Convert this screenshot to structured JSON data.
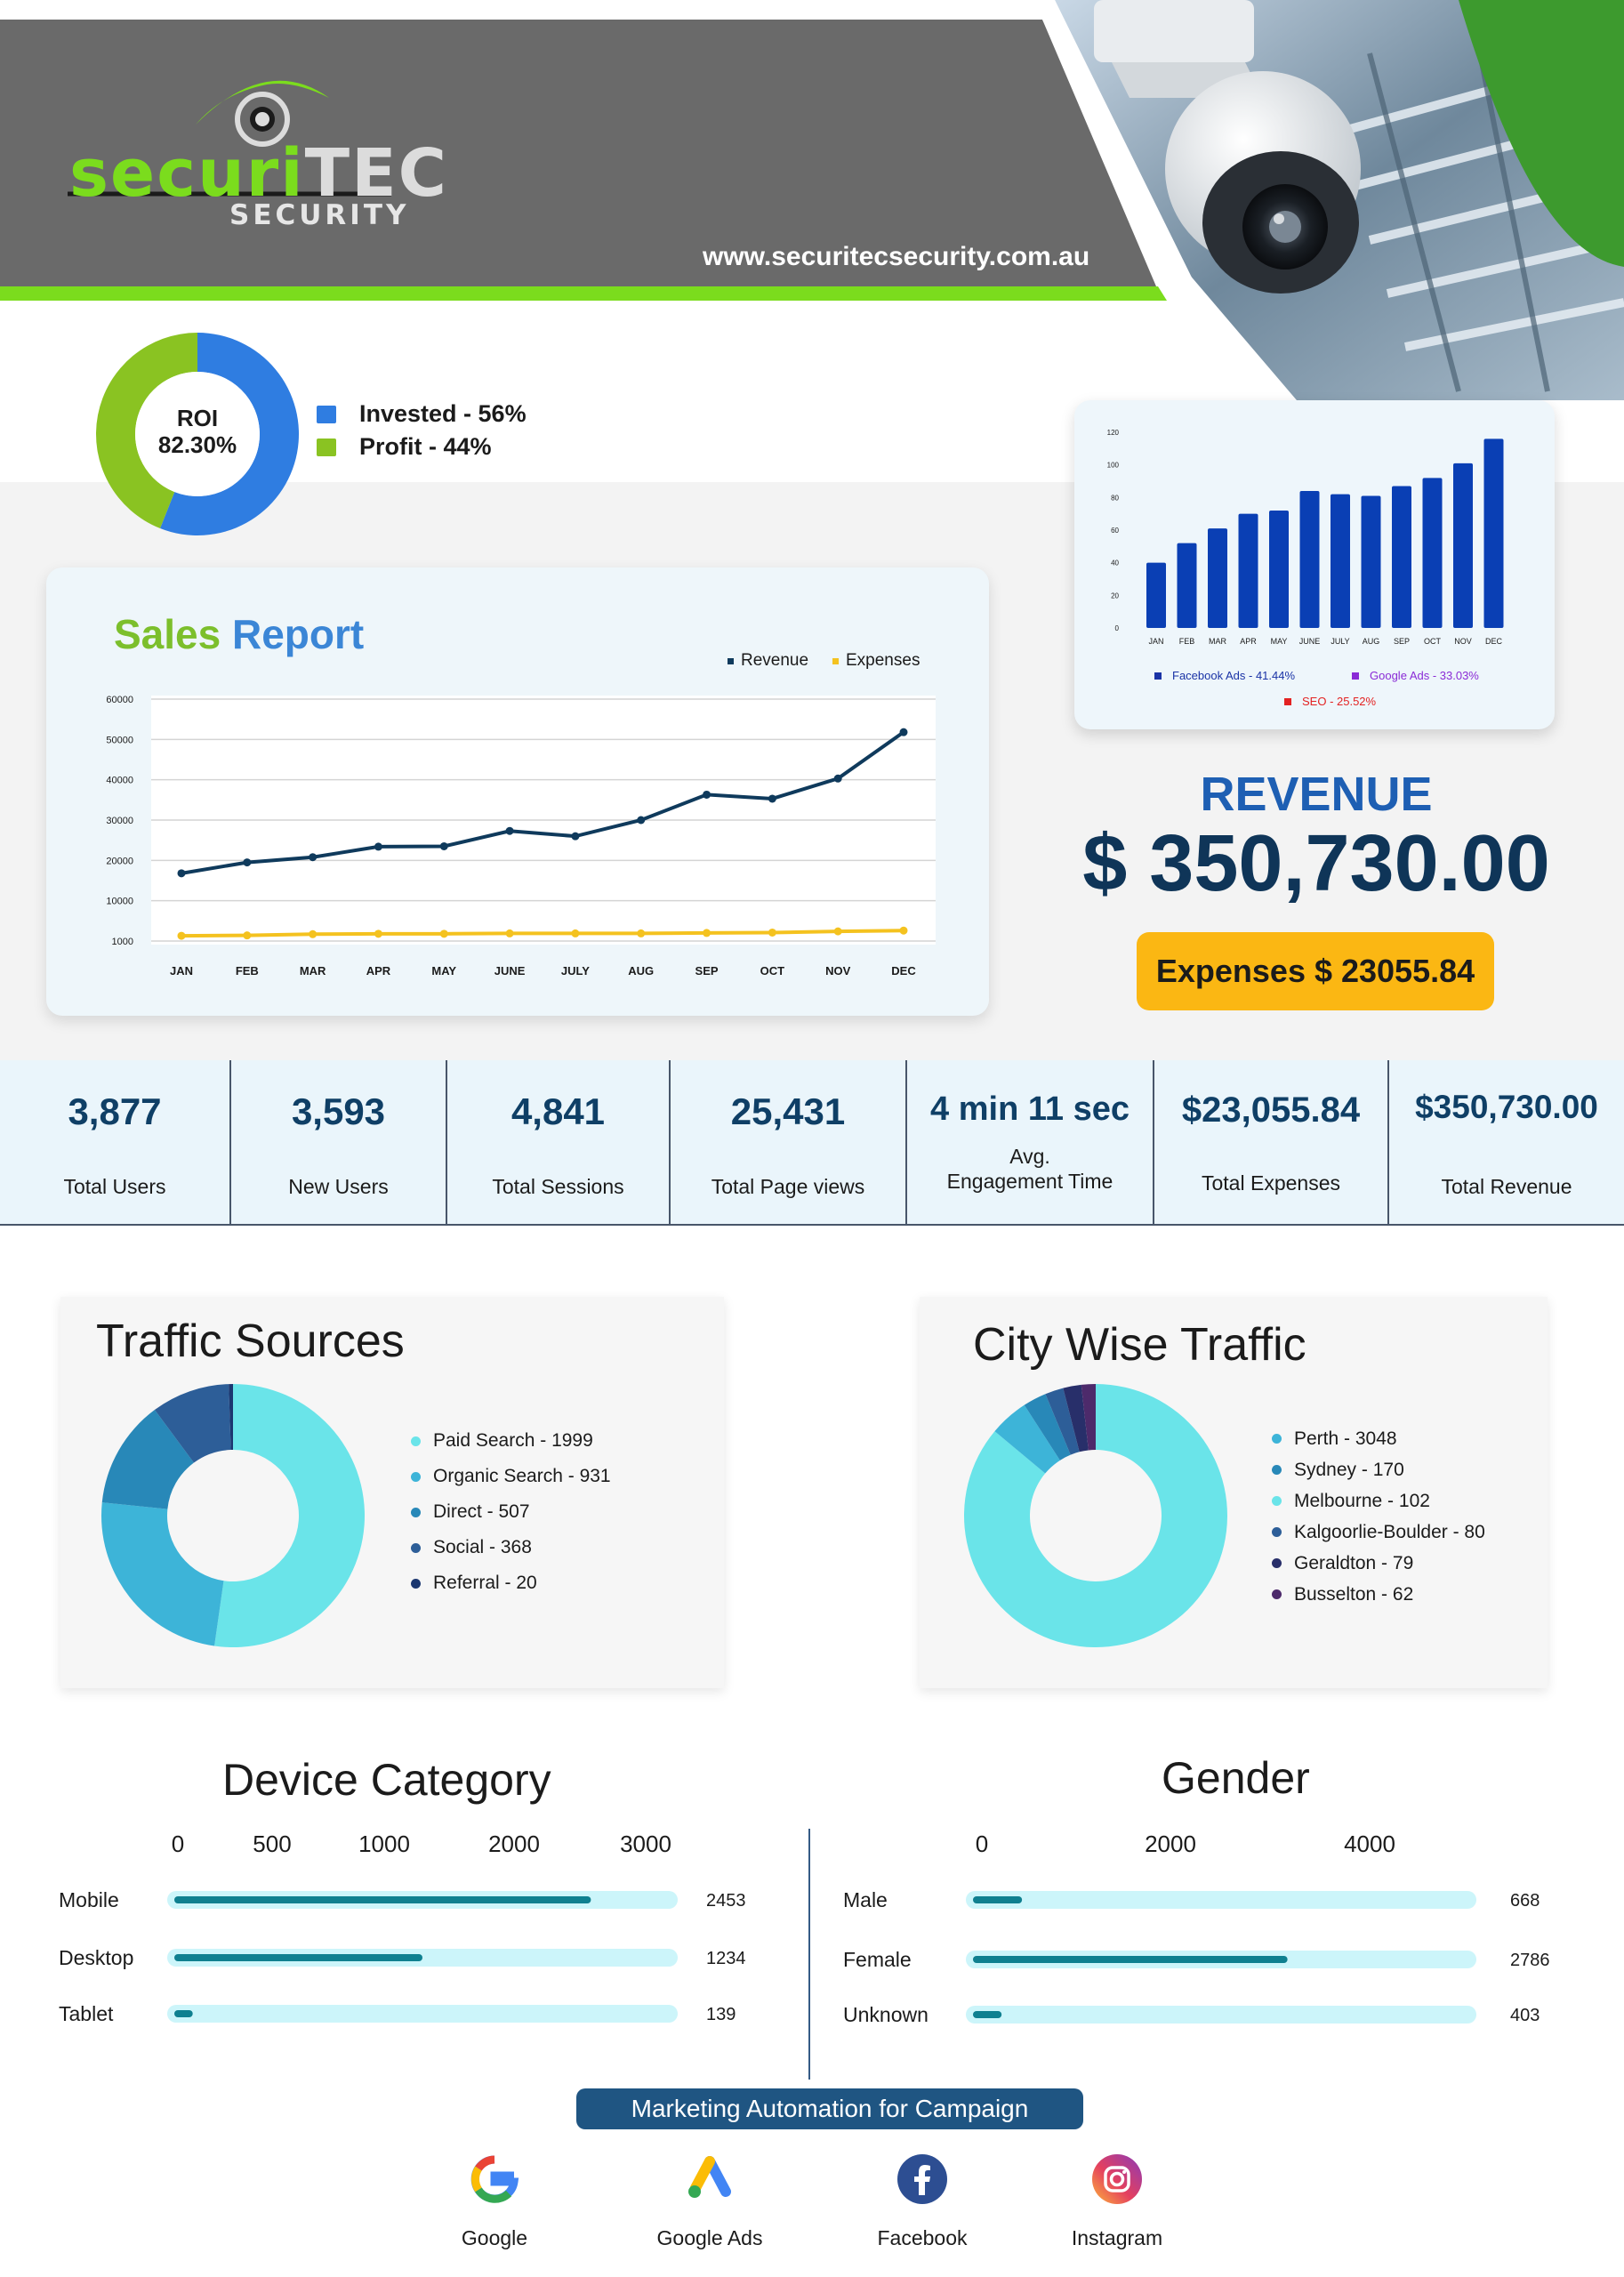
{
  "brand": {
    "logo_word_1": "securi",
    "logo_word_2": "TEC",
    "logo_sub": "SECURITY",
    "website": "www.securitecsecurity.com.au"
  },
  "roi": {
    "label": "ROI",
    "value": "82.30%",
    "legend": [
      {
        "label": "Invested - 56%",
        "color": "#2f7de1"
      },
      {
        "label": "Profit - 44%",
        "color": "#8ac322"
      }
    ],
    "chart_data": {
      "type": "pie",
      "slices": [
        {
          "name": "Invested",
          "value": 56
        },
        {
          "name": "Profit",
          "value": 44
        }
      ]
    }
  },
  "sales_report": {
    "title_1": "Sales",
    "title_2": "Report",
    "legend_revenue": "Revenue",
    "legend_expenses": "Expenses",
    "colors": {
      "revenue": "#0f3a5c",
      "expenses": "#f4c21f"
    },
    "chart_data": {
      "type": "line",
      "categories": [
        "JAN",
        "FEB",
        "MAR",
        "APR",
        "MAY",
        "JUNE",
        "JULY",
        "AUG",
        "SEP",
        "OCT",
        "NOV",
        "DEC"
      ],
      "yticks": [
        1000,
        10000,
        20000,
        30000,
        40000,
        50000,
        60000
      ],
      "series": [
        {
          "name": "Revenue",
          "values": [
            16800,
            19500,
            20800,
            23400,
            23500,
            27300,
            26000,
            30000,
            36300,
            35300,
            40300,
            51800
          ]
        },
        {
          "name": "Expenses",
          "values": [
            1300,
            1400,
            1700,
            1800,
            1800,
            1900,
            1900,
            1900,
            2000,
            2100,
            2400,
            2600
          ]
        }
      ]
    }
  },
  "ads_chart": {
    "colors": {
      "bar": "#0a3fb4",
      "facebook": "#1a33a6",
      "google": "#8a2bd6",
      "seo": "#e32222"
    },
    "legend": [
      {
        "label": "Facebook Ads - 41.44%"
      },
      {
        "label": "Google Ads - 33.03%"
      },
      {
        "label": "SEO - 25.52%"
      }
    ],
    "chart_data": {
      "type": "bar",
      "categories": [
        "JAN",
        "FEB",
        "MAR",
        "APR",
        "MAY",
        "JUNE",
        "JULY",
        "AUG",
        "SEP",
        "OCT",
        "NOV",
        "DEC"
      ],
      "yticks": [
        0,
        20,
        40,
        60,
        80,
        100,
        120
      ],
      "ylim": [
        0,
        120
      ],
      "values": [
        40,
        52,
        61,
        70,
        72,
        84,
        82,
        81,
        87,
        92,
        101,
        116
      ]
    }
  },
  "revenue": {
    "label": "REVENUE",
    "value": "$ 350,730.00",
    "expenses": "Expenses $ 23055.84"
  },
  "stats": [
    {
      "value": "3,877",
      "label": "Total Users"
    },
    {
      "value": "3,593",
      "label": "New Users"
    },
    {
      "value": "4,841",
      "label": "Total Sessions"
    },
    {
      "value": "25,431",
      "label": "Total Page views"
    },
    {
      "value": "4 min 11 sec",
      "label_1": "Avg.",
      "label_2": "Engagement Time"
    },
    {
      "value": "$23,055.84",
      "label": "Total Expenses"
    },
    {
      "value": "$350,730.00",
      "label": "Total Revenue"
    }
  ],
  "traffic_sources": {
    "title": "Traffic Sources",
    "chart_data": {
      "type": "pie",
      "slices": [
        {
          "name": "Paid Search - 1999",
          "value": 1999,
          "color": "#6ae4e9"
        },
        {
          "name": "Organic Search - 931",
          "value": 931,
          "color": "#3db4d8"
        },
        {
          "name": "Direct - 507",
          "value": 507,
          "color": "#2888b8"
        },
        {
          "name": "Social - 368",
          "value": 368,
          "color": "#2d5e98"
        },
        {
          "name": "Referral - 20",
          "value": 20,
          "color": "#1b3770"
        }
      ]
    }
  },
  "city_traffic": {
    "title": "City Wise Traffic",
    "chart_data": {
      "type": "pie",
      "slices": [
        {
          "name": "Perth - 3048",
          "value": 3048,
          "color": "#6ae4e9"
        },
        {
          "name": "Sydney - 170",
          "value": 170,
          "color": "#3db4d8"
        },
        {
          "name": "Melbourne - 102",
          "value": 102,
          "color": "#2888b8"
        },
        {
          "name": "Kalgoorlie-Boulder - 80",
          "value": 80,
          "color": "#2d5e98"
        },
        {
          "name": "Geraldton - 79",
          "value": 79,
          "color": "#282f6a"
        },
        {
          "name": "Busselton - 62",
          "value": 62,
          "color": "#4d2a6b"
        }
      ]
    },
    "legend_dot_colors": [
      "#3db4d8",
      "#2888b8",
      "#6ae4e9",
      "#2d5e98",
      "#282f6a",
      "#4d2a6b"
    ]
  },
  "device_category": {
    "title": "Device Category",
    "ticks": [
      "0",
      "500",
      "1000",
      "2000",
      "3000"
    ],
    "chart_data": {
      "type": "bar",
      "categories": [
        "Mobile",
        "Desktop",
        "Tablet"
      ],
      "values": [
        2453,
        1234,
        139
      ],
      "labels": [
        "2453",
        "1234",
        "139"
      ],
      "fractions": [
        0.83,
        0.5,
        0.05
      ]
    }
  },
  "gender": {
    "title": "Gender",
    "ticks": [
      "0",
      "2000",
      "4000"
    ],
    "chart_data": {
      "type": "bar",
      "categories": [
        "Male",
        "Female",
        "Unknown"
      ],
      "values": [
        668,
        2786,
        403
      ],
      "labels": [
        "668",
        "2786",
        "403"
      ],
      "fractions": [
        0.11,
        0.63,
        0.07
      ]
    }
  },
  "footer": {
    "pill": "Marketing Automation for Campaign",
    "platforms": [
      {
        "name": "Google",
        "icon": "google-icon"
      },
      {
        "name": "Google Ads",
        "icon": "google-ads-icon"
      },
      {
        "name": "Facebook",
        "icon": "facebook-icon"
      },
      {
        "name": "Instagram",
        "icon": "instagram-icon"
      }
    ]
  }
}
